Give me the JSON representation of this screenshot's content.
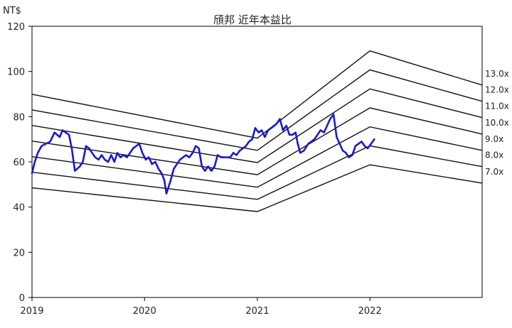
{
  "chart_data": {
    "type": "line",
    "title": "頎邦 近年本益比",
    "ylabel": "NT$",
    "xlabel": "",
    "ylim": [
      0,
      120
    ],
    "xlim": [
      "2019-01-01",
      "2022-12-31"
    ],
    "yticks": [
      "0",
      "20",
      "40",
      "60",
      "80",
      "100",
      "120"
    ],
    "xticks": [
      {
        "label": "2019",
        "date": "2019-01-01"
      },
      {
        "label": "2020",
        "date": "2020-01-01"
      },
      {
        "label": "2021",
        "date": "2021-01-01"
      },
      {
        "label": "2022",
        "date": "2022-01-01"
      }
    ],
    "grid": false,
    "legend": "none",
    "price_color": "#1a1acd",
    "band_color": "#111111",
    "pe_bands": [
      {
        "label": "7.0x",
        "points": [
          [
            "2019-01-01",
            48.5
          ],
          [
            "2021-01-01",
            38.0
          ],
          [
            "2022-01-01",
            58.7
          ],
          [
            "2022-12-31",
            50.6
          ]
        ]
      },
      {
        "label": "8.0x",
        "points": [
          [
            "2019-01-01",
            55.4
          ],
          [
            "2021-01-01",
            43.4
          ],
          [
            "2022-01-01",
            67.1
          ],
          [
            "2022-12-31",
            57.9
          ]
        ]
      },
      {
        "label": "9.0x",
        "points": [
          [
            "2019-01-01",
            62.3
          ],
          [
            "2021-01-01",
            48.8
          ],
          [
            "2022-01-01",
            75.5
          ],
          [
            "2022-12-31",
            65.1
          ]
        ]
      },
      {
        "label": "10.0x",
        "points": [
          [
            "2019-01-01",
            69.2
          ],
          [
            "2021-01-01",
            54.3
          ],
          [
            "2022-01-01",
            83.9
          ],
          [
            "2022-12-31",
            72.3
          ]
        ]
      },
      {
        "label": "11.0x",
        "points": [
          [
            "2019-01-01",
            76.1
          ],
          [
            "2021-01-01",
            59.7
          ],
          [
            "2022-01-01",
            92.3
          ],
          [
            "2022-12-31",
            79.6
          ]
        ]
      },
      {
        "label": "12.0x",
        "points": [
          [
            "2019-01-01",
            83.0
          ],
          [
            "2021-01-01",
            65.1
          ],
          [
            "2022-01-01",
            100.7
          ],
          [
            "2022-12-31",
            86.8
          ]
        ]
      },
      {
        "label": "13.0x",
        "points": [
          [
            "2019-01-01",
            89.9
          ],
          [
            "2021-01-01",
            70.5
          ],
          [
            "2022-01-01",
            109.1
          ],
          [
            "2022-12-31",
            94.0
          ]
        ]
      }
    ],
    "price": {
      "x": [
        "2019-01-01",
        "2019-01-10",
        "2019-01-20",
        "2019-02-01",
        "2019-02-15",
        "2019-03-01",
        "2019-03-15",
        "2019-04-01",
        "2019-04-10",
        "2019-04-20",
        "2019-05-01",
        "2019-05-10",
        "2019-05-20",
        "2019-05-28",
        "2019-06-05",
        "2019-06-15",
        "2019-06-25",
        "2019-07-05",
        "2019-07-15",
        "2019-07-25",
        "2019-08-05",
        "2019-08-15",
        "2019-08-25",
        "2019-09-05",
        "2019-09-15",
        "2019-09-25",
        "2019-10-05",
        "2019-10-15",
        "2019-10-25",
        "2019-11-05",
        "2019-11-15",
        "2019-11-25",
        "2019-12-05",
        "2019-12-15",
        "2019-12-25",
        "2020-01-05",
        "2020-01-15",
        "2020-01-25",
        "2020-02-05",
        "2020-02-15",
        "2020-02-25",
        "2020-03-05",
        "2020-03-12",
        "2020-03-19",
        "2020-03-26",
        "2020-04-05",
        "2020-04-15",
        "2020-04-25",
        "2020-05-05",
        "2020-05-15",
        "2020-05-25",
        "2020-06-05",
        "2020-06-15",
        "2020-06-25",
        "2020-07-05",
        "2020-07-15",
        "2020-07-25",
        "2020-08-05",
        "2020-08-15",
        "2020-08-25",
        "2020-09-05",
        "2020-09-15",
        "2020-09-25",
        "2020-10-05",
        "2020-10-15",
        "2020-10-25",
        "2020-11-05",
        "2020-11-15",
        "2020-11-25",
        "2020-12-05",
        "2020-12-15",
        "2020-12-25",
        "2021-01-05",
        "2021-01-15",
        "2021-01-25",
        "2021-02-05",
        "2021-02-15",
        "2021-02-25",
        "2021-03-05",
        "2021-03-15",
        "2021-03-25",
        "2021-04-05",
        "2021-04-15",
        "2021-04-25",
        "2021-05-05",
        "2021-05-12",
        "2021-05-20",
        "2021-06-01",
        "2021-06-15",
        "2021-06-25",
        "2021-07-05",
        "2021-07-15",
        "2021-07-25",
        "2021-08-05",
        "2021-08-15",
        "2021-08-25",
        "2021-09-05",
        "2021-09-15",
        "2021-09-25",
        "2021-10-05",
        "2021-10-15",
        "2021-10-25",
        "2021-11-05",
        "2021-11-15",
        "2021-11-25",
        "2021-12-05",
        "2021-12-15",
        "2021-12-25",
        "2022-01-05",
        "2022-01-15"
      ],
      "y": [
        55,
        60,
        64,
        67,
        68,
        69,
        73,
        71,
        74,
        73,
        72,
        66,
        56,
        57,
        58,
        60,
        67,
        66,
        64,
        62,
        61,
        63,
        61,
        60,
        63,
        60,
        64,
        62,
        63,
        62,
        64,
        66,
        67,
        68,
        64,
        61,
        62,
        59,
        60,
        57,
        55,
        52,
        46,
        49,
        52,
        57,
        59,
        61,
        62,
        63,
        62,
        64,
        67,
        66,
        58,
        56,
        58,
        56,
        58,
        63,
        62,
        62,
        62,
        62,
        64,
        63,
        65,
        66,
        67,
        69,
        70,
        75,
        73,
        74,
        71,
        74,
        75,
        76,
        77,
        79,
        74,
        76,
        72,
        72,
        73,
        68,
        64,
        65,
        68,
        69,
        70,
        72,
        74,
        73,
        76,
        79,
        81,
        71,
        68,
        65,
        64,
        62,
        63,
        67,
        68,
        69,
        67,
        66,
        68,
        70
      ]
    }
  }
}
